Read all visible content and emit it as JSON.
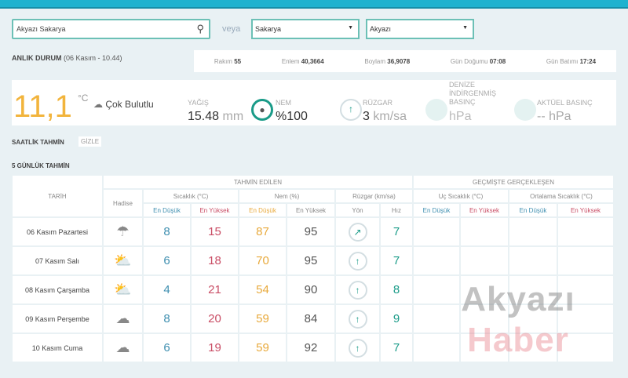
{
  "search": {
    "value": "Akyazı Sakarya",
    "icon": "search-icon"
  },
  "veya": "veya",
  "province": "Sakarya",
  "district": "Akyazı",
  "anlik": {
    "title": "ANLIK DURUM",
    "time": "(06 Kasım - 10.44)"
  },
  "info": [
    {
      "label": "Rakım",
      "value": "55"
    },
    {
      "label": "Enlem",
      "value": "40,3664"
    },
    {
      "label": "Boylam",
      "value": "36,9078"
    },
    {
      "label": "Gün Doğumu",
      "value": "07:08"
    },
    {
      "label": "Gün Batımı",
      "value": "17:24"
    }
  ],
  "current": {
    "temp": "11,1",
    "unit": "°C",
    "condition": "Çok Bulutlu",
    "yagis_label": "YAĞIŞ",
    "yagis": "15.48",
    "yagis_unit": "mm",
    "nem_label": "NEM",
    "nem": "%100",
    "ruzgar_label": "RÜZGAR",
    "ruzgar": "3",
    "ruzgar_unit": "km/sa",
    "deniz_label": "DENİZE İNDİRGENMİŞ BASINÇ",
    "deniz_value": "hPa",
    "aktuel_label": "AKTÜEL BASINÇ",
    "aktuel_value": "-- hPa"
  },
  "saatlik": "SAATLİK TAHMİN",
  "gizle": "GİZLE",
  "gunluk": "5 GÜNLÜK TAHMİN",
  "table": {
    "tarih": "TARİH",
    "tahmin": "TAHMİN EDİLEN",
    "gecmis": "GEÇMİŞTE GERÇEKLEŞEN",
    "hadise": "Hadise",
    "sicaklik": "Sıcaklık (°C)",
    "nem": "Nem (%)",
    "ruzgar": "Rüzgar (km/sa)",
    "uc": "Uç Sıcaklık (°C)",
    "ort": "Ortalama Sıcaklık (°C)",
    "dusuk": "En Düşük",
    "yuksek": "En Yüksek",
    "yon": "Yön",
    "hiz": "Hız",
    "rows": [
      {
        "date": "06 Kasım Pazartesi",
        "icon": "rain-cloud-icon",
        "glyph": "☂",
        "tlo": "8",
        "thi": "15",
        "nlo": "87",
        "nhi": "95",
        "dir": "↗",
        "hiz": "7"
      },
      {
        "date": "07 Kasım Salı",
        "icon": "partly-cloudy-icon",
        "glyph": "⛅",
        "tlo": "6",
        "thi": "18",
        "nlo": "70",
        "nhi": "95",
        "dir": "↑",
        "hiz": "7"
      },
      {
        "date": "08 Kasım Çarşamba",
        "icon": "partly-cloudy-icon",
        "glyph": "⛅",
        "tlo": "4",
        "thi": "21",
        "nlo": "54",
        "nhi": "90",
        "dir": "↑",
        "hiz": "8"
      },
      {
        "date": "09 Kasım Perşembe",
        "icon": "cloud-icon",
        "glyph": "☁",
        "tlo": "8",
        "thi": "20",
        "nlo": "59",
        "nhi": "84",
        "dir": "↑",
        "hiz": "9"
      },
      {
        "date": "10 Kasım Cuma",
        "icon": "cloud-icon",
        "glyph": "☁",
        "tlo": "6",
        "thi": "19",
        "nlo": "59",
        "nhi": "92",
        "dir": "↑",
        "hiz": "7"
      }
    ]
  },
  "watermark": {
    "a": "Akyazı",
    "b": "Haber"
  }
}
